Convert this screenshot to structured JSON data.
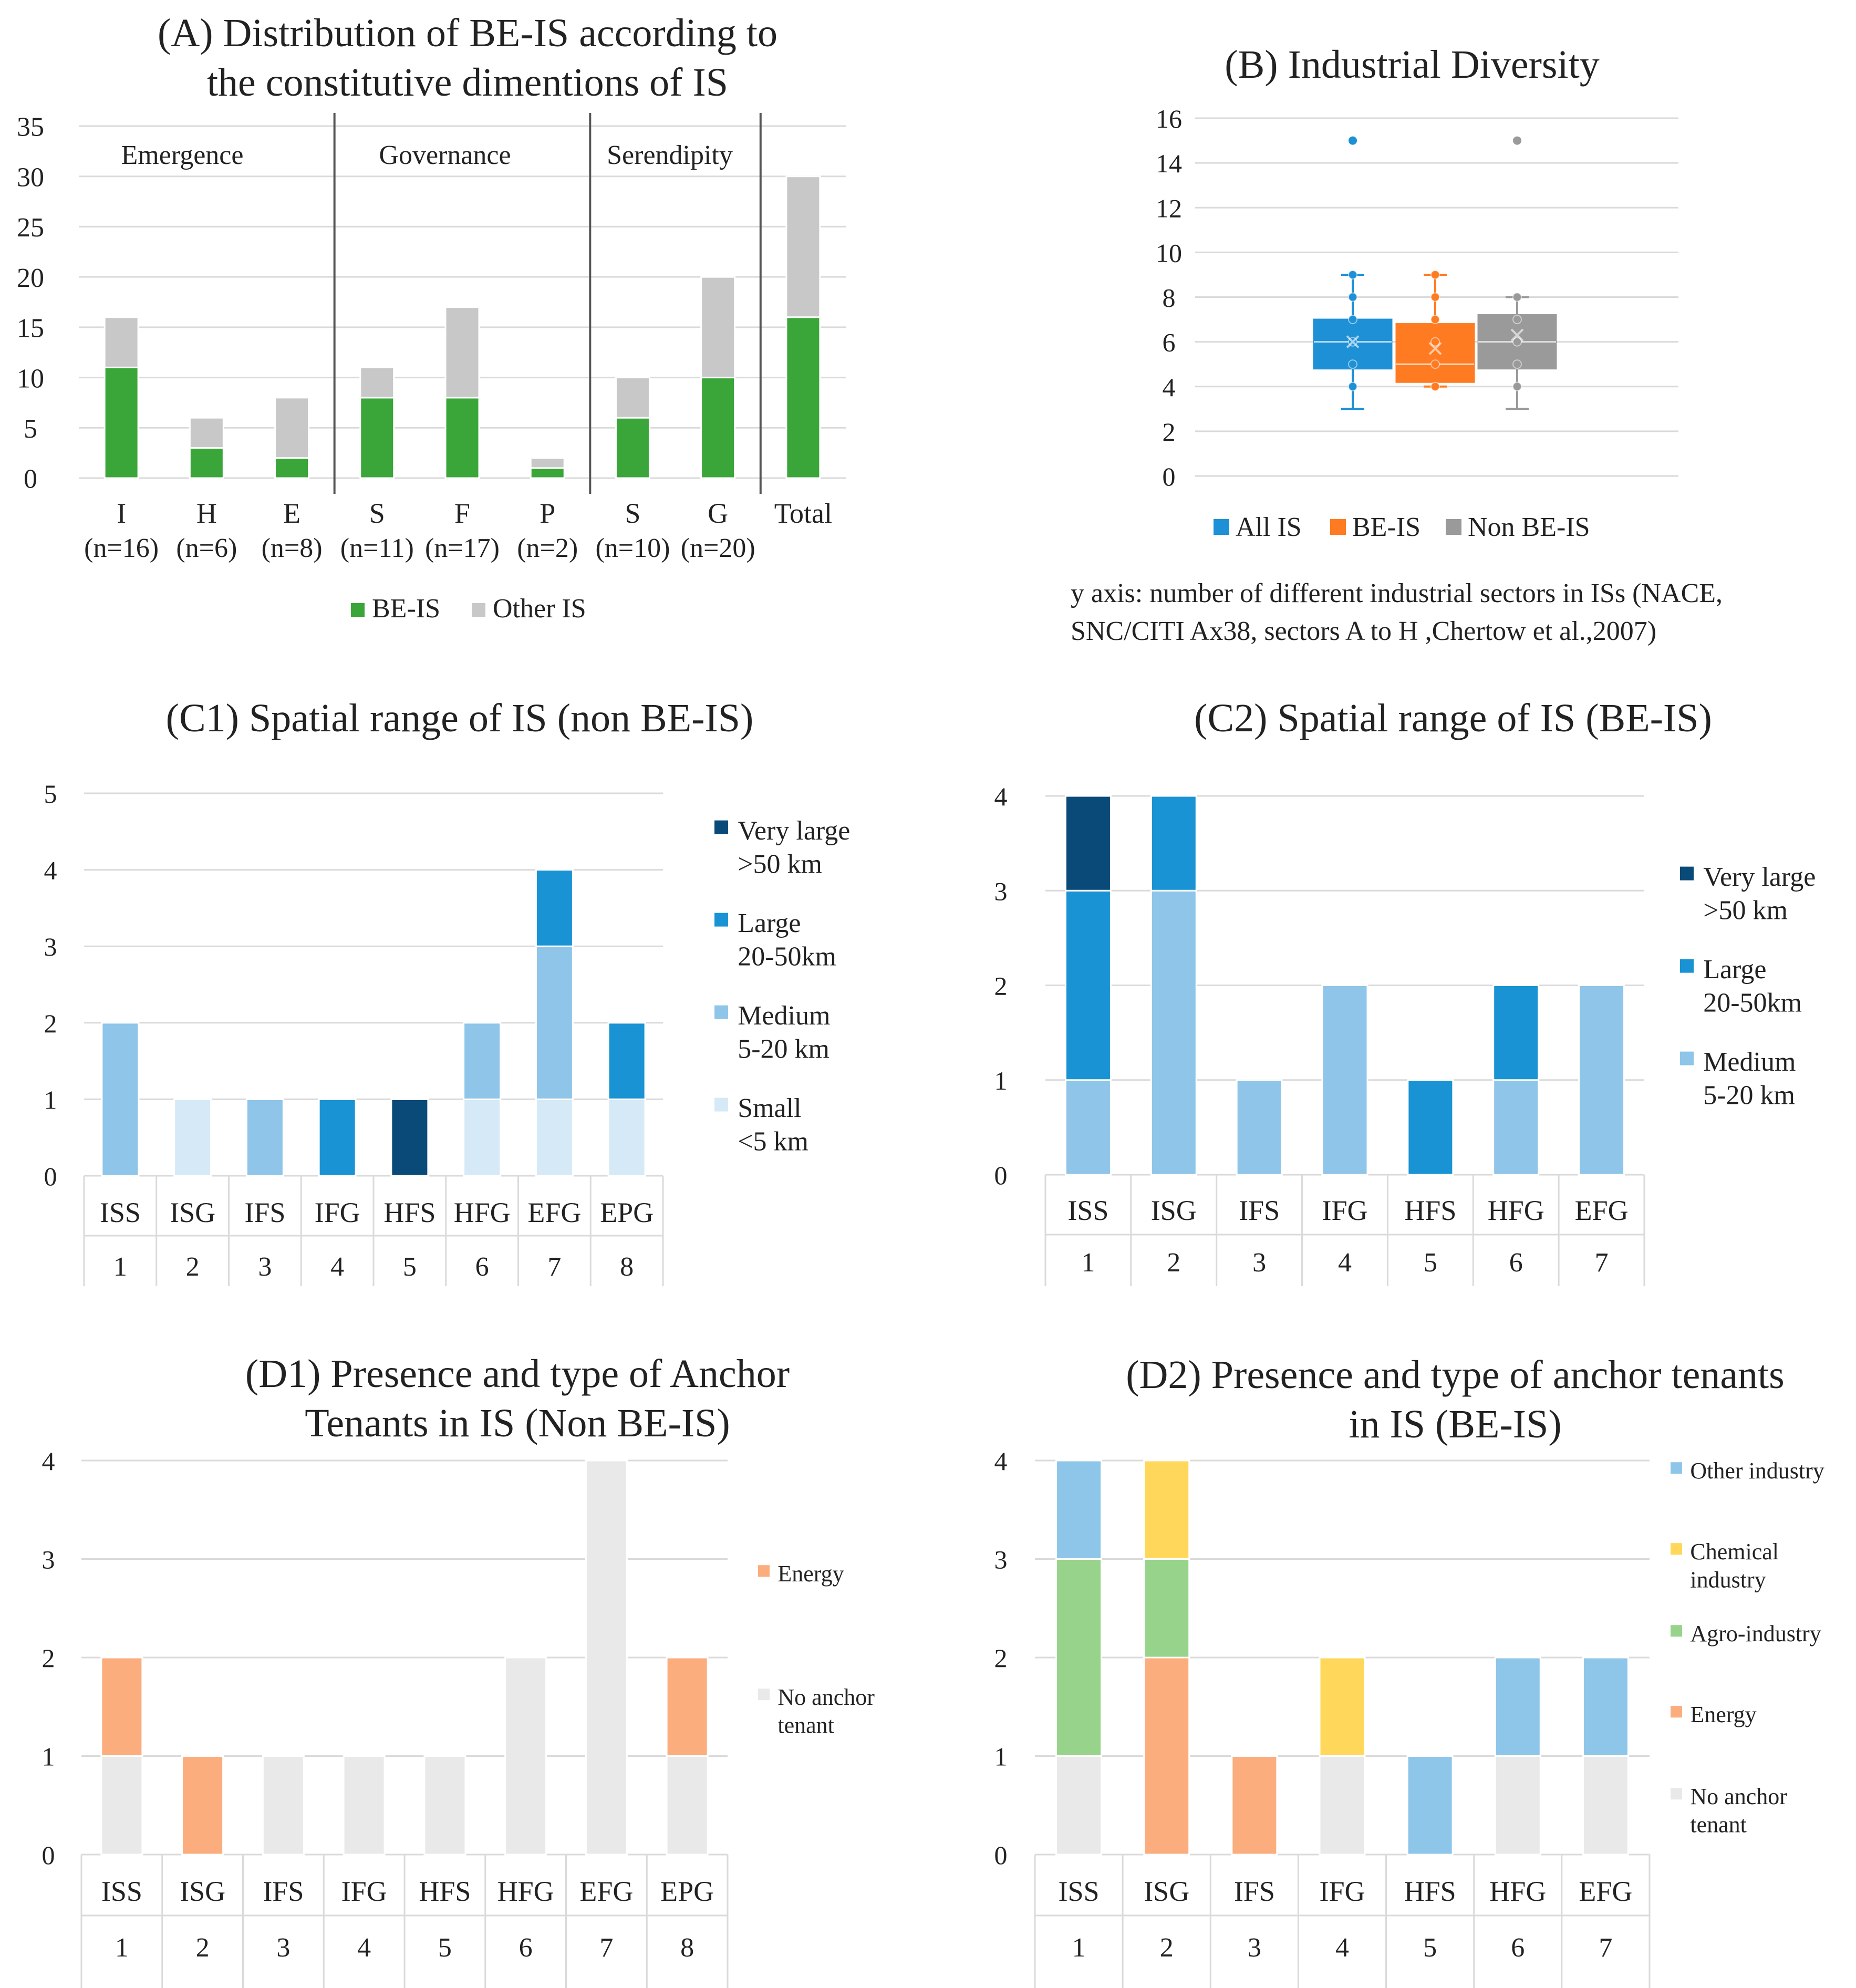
{
  "colors": {
    "be_is": "#3aa639",
    "other_is": "#c8c8c8",
    "all_is": "#1e90d6",
    "be_is_box": "#ff7b22",
    "non_be_is": "#9a9a9a",
    "very_large": "#0a4a78",
    "large": "#1993d3",
    "medium": "#8ec5e8",
    "small": "#d6e9f6",
    "energy": "#fbad7d",
    "no_anchor": "#e9e9e9",
    "other_industry": "#8ec6ea",
    "chemical": "#ffd75a",
    "agro": "#97d38a"
  },
  "chart_data": [
    {
      "id": "A",
      "type": "bar",
      "stacked": true,
      "title": [
        "(A) Distribution of BE-IS according to",
        "the constitutive dimentions of IS"
      ],
      "categories": [
        "I",
        "H",
        "E",
        "S",
        "F",
        "P",
        "S",
        "G",
        "Total"
      ],
      "category_sublabels": [
        "(n=16)",
        "(n=6)",
        "(n=8)",
        "(n=11)",
        "(n=17)",
        "(n=2)",
        "(n=10)",
        "(n=20)",
        ""
      ],
      "groups": [
        {
          "label": "Emergence",
          "from": 0,
          "to": 2
        },
        {
          "label": "Governance",
          "from": 3,
          "to": 5
        },
        {
          "label": "Serendipity",
          "from": 6,
          "to": 7
        }
      ],
      "series": [
        {
          "name": "BE-IS",
          "color_key": "be_is",
          "values": [
            11,
            3,
            2,
            8,
            8,
            1,
            6,
            10,
            16
          ]
        },
        {
          "name": "Other IS",
          "color_key": "other_is",
          "values": [
            5,
            3,
            6,
            3,
            9,
            1,
            4,
            10,
            14
          ]
        }
      ],
      "ylim": [
        0,
        35
      ],
      "yticks": [
        0,
        5,
        10,
        15,
        20,
        25,
        30,
        35
      ],
      "legend": "bottom",
      "grid": true
    },
    {
      "id": "B",
      "type": "box",
      "title": [
        "(B) Industrial Diversity"
      ],
      "series": [
        {
          "name": "All IS",
          "color_key": "all_is",
          "min": 3,
          "q1": 4.8,
          "median": 6,
          "q3": 7,
          "max": 9,
          "mean": 6,
          "outliers": [
            15
          ],
          "points": [
            4,
            5,
            6,
            7,
            8,
            9
          ]
        },
        {
          "name": "BE-IS",
          "color_key": "be_is_box",
          "min": 4,
          "q1": 4.2,
          "median": 5,
          "q3": 6.8,
          "max": 9,
          "mean": 5.7,
          "outliers": [],
          "points": [
            4,
            5,
            6,
            7,
            8,
            9
          ]
        },
        {
          "name": "Non BE-IS",
          "color_key": "non_be_is",
          "min": 3,
          "q1": 4.8,
          "median": 6,
          "q3": 7.2,
          "max": 8,
          "mean": 6.3,
          "outliers": [
            15
          ],
          "points": [
            4,
            5,
            6,
            7,
            8
          ]
        }
      ],
      "ylim": [
        0,
        16
      ],
      "yticks": [
        0,
        2,
        4,
        6,
        8,
        10,
        12,
        14,
        16
      ],
      "legend": "bottom",
      "grid": true,
      "caption": [
        "y axis: number of different industrial sectors in ISs (NACE,",
        "SNC/CITI Ax38, sectors A to H ,Chertow et al.,2007)"
      ]
    },
    {
      "id": "C1",
      "type": "bar",
      "stacked": true,
      "title": [
        "(C1) Spatial range of IS (non BE-IS)"
      ],
      "categories": [
        "ISS",
        "ISG",
        "IFS",
        "IFG",
        "HFS",
        "HFG",
        "EFG",
        "EPG"
      ],
      "category_numbers": [
        "1",
        "2",
        "3",
        "4",
        "5",
        "6",
        "7",
        "8"
      ],
      "series": [
        {
          "name": "Small <5 km",
          "color_key": "small",
          "values": [
            0,
            1,
            0,
            0,
            0,
            1,
            1,
            1
          ]
        },
        {
          "name": "Medium 5-20 km",
          "color_key": "medium",
          "values": [
            2,
            0,
            1,
            0,
            0,
            1,
            2,
            0
          ]
        },
        {
          "name": "Large 20-50km",
          "color_key": "large",
          "values": [
            0,
            0,
            0,
            1,
            0,
            0,
            1,
            1
          ]
        },
        {
          "name": "Very large >50 km",
          "color_key": "very_large",
          "values": [
            0,
            0,
            0,
            0,
            1,
            0,
            0,
            0
          ]
        }
      ],
      "legend_entries": [
        {
          "label": [
            "Very large",
            ">50 km"
          ],
          "color_key": "very_large"
        },
        {
          "label": [
            "Large",
            "20-50km"
          ],
          "color_key": "large"
        },
        {
          "label": [
            "Medium",
            "5-20 km"
          ],
          "color_key": "medium"
        },
        {
          "label": [
            "Small",
            "<5 km"
          ],
          "color_key": "small"
        }
      ],
      "ylim": [
        0,
        5
      ],
      "yticks": [
        0,
        1,
        2,
        3,
        4,
        5
      ],
      "legend": "right",
      "grid": true
    },
    {
      "id": "C2",
      "type": "bar",
      "stacked": true,
      "title": [
        "(C2) Spatial range of IS (BE-IS)"
      ],
      "categories": [
        "ISS",
        "ISG",
        "IFS",
        "IFG",
        "HFS",
        "HFG",
        "EFG"
      ],
      "category_numbers": [
        "1",
        "2",
        "3",
        "4",
        "5",
        "6",
        "7"
      ],
      "series": [
        {
          "name": "Medium 5-20 km",
          "color_key": "medium",
          "values": [
            1,
            3,
            1,
            2,
            0,
            1,
            2
          ]
        },
        {
          "name": "Large 20-50km",
          "color_key": "large",
          "values": [
            2,
            1,
            0,
            0,
            1,
            1,
            0
          ]
        },
        {
          "name": "Very large >50 km",
          "color_key": "very_large",
          "values": [
            1,
            0,
            0,
            0,
            0,
            0,
            0
          ]
        }
      ],
      "legend_entries": [
        {
          "label": [
            "Very large",
            ">50 km"
          ],
          "color_key": "very_large"
        },
        {
          "label": [
            "Large",
            "20-50km"
          ],
          "color_key": "large"
        },
        {
          "label": [
            "Medium",
            "5-20 km"
          ],
          "color_key": "medium"
        }
      ],
      "ylim": [
        0,
        4
      ],
      "yticks": [
        0,
        1,
        2,
        3,
        4
      ],
      "legend": "right",
      "grid": true
    },
    {
      "id": "D1",
      "type": "bar",
      "stacked": true,
      "title": [
        "(D1) Presence and type of Anchor",
        "Tenants in IS  (Non BE-IS)"
      ],
      "categories": [
        "ISS",
        "ISG",
        "IFS",
        "IFG",
        "HFS",
        "HFG",
        "EFG",
        "EPG"
      ],
      "category_numbers": [
        "1",
        "2",
        "3",
        "4",
        "5",
        "6",
        "7",
        "8"
      ],
      "series": [
        {
          "name": "No anchor tenant",
          "color_key": "no_anchor",
          "values": [
            1,
            0,
            1,
            1,
            1,
            2,
            4,
            1
          ]
        },
        {
          "name": "Energy",
          "color_key": "energy",
          "values": [
            1,
            1,
            0,
            0,
            0,
            0,
            0,
            1
          ]
        }
      ],
      "legend_entries": [
        {
          "label": [
            "Energy"
          ],
          "color_key": "energy"
        },
        {
          "label": [
            "No anchor",
            "tenant"
          ],
          "color_key": "no_anchor"
        }
      ],
      "ylim": [
        0,
        4
      ],
      "yticks": [
        0,
        1,
        2,
        3,
        4
      ],
      "legend": "right",
      "grid": true
    },
    {
      "id": "D2",
      "type": "bar",
      "stacked": true,
      "title": [
        "(D2) Presence and type of anchor tenants",
        "in IS  (BE-IS)"
      ],
      "categories": [
        "ISS",
        "ISG",
        "IFS",
        "IFG",
        "HFS",
        "HFG",
        "EFG"
      ],
      "category_numbers": [
        "1",
        "2",
        "3",
        "4",
        "5",
        "6",
        "7"
      ],
      "series": [
        {
          "name": "No anchor tenant",
          "color_key": "no_anchor",
          "values": [
            1,
            0,
            0,
            1,
            0,
            1,
            1
          ]
        },
        {
          "name": "Energy",
          "color_key": "energy",
          "values": [
            0,
            2,
            1,
            0,
            0,
            0,
            0
          ]
        },
        {
          "name": "Agro-industry",
          "color_key": "agro",
          "values": [
            2,
            1,
            0,
            0,
            0,
            0,
            0
          ]
        },
        {
          "name": "Chemical industry",
          "color_key": "chemical",
          "values": [
            0,
            1,
            0,
            1,
            0,
            0,
            0
          ]
        },
        {
          "name": "Other industry",
          "color_key": "other_industry",
          "values": [
            1,
            0,
            0,
            0,
            1,
            1,
            1
          ]
        }
      ],
      "legend_entries": [
        {
          "label": [
            "Other industry"
          ],
          "color_key": "other_industry"
        },
        {
          "label": [
            "Chemical",
            "industry"
          ],
          "color_key": "chemical"
        },
        {
          "label": [
            "Agro-industry"
          ],
          "color_key": "agro"
        },
        {
          "label": [
            "Energy"
          ],
          "color_key": "energy"
        },
        {
          "label": [
            "No anchor",
            "tenant"
          ],
          "color_key": "no_anchor"
        }
      ],
      "ylim": [
        0,
        4
      ],
      "yticks": [
        0,
        1,
        2,
        3,
        4
      ],
      "legend": "right",
      "grid": true
    }
  ]
}
